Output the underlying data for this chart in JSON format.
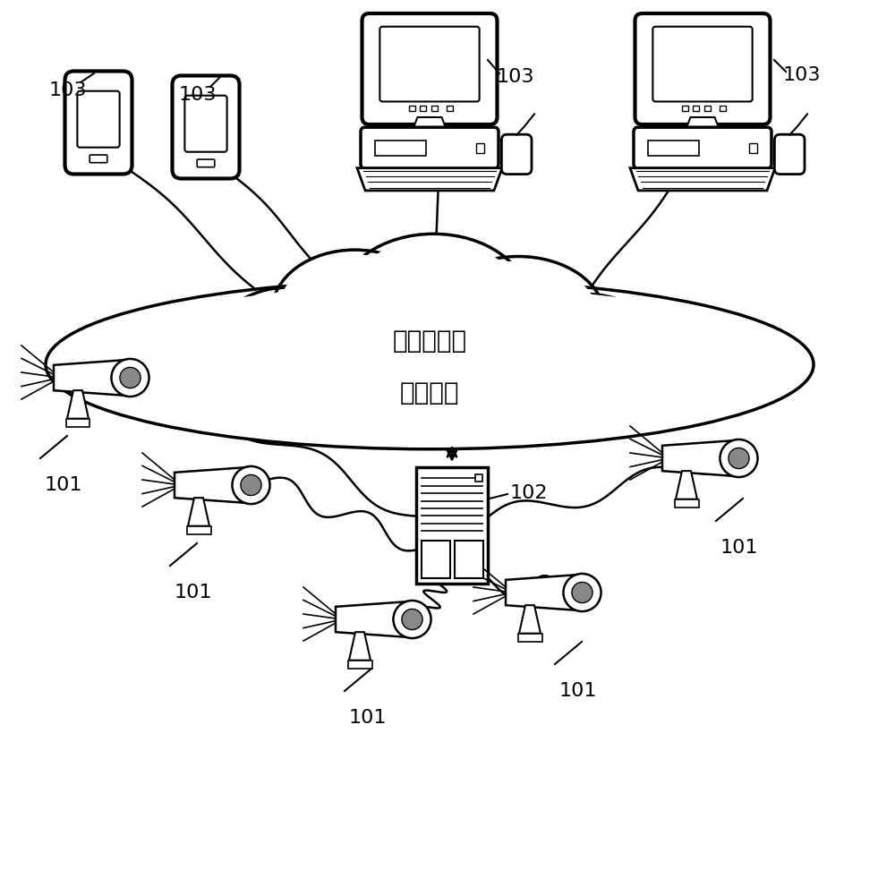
{
  "background_color": "#ffffff",
  "line_color": "#000000",
  "cloud_text_line1": "有线方式或",
  "cloud_text_line2": "无线方式",
  "server_label": "102",
  "camera_label": "101",
  "client_label": "103",
  "figsize": [
    10.0,
    9.72
  ],
  "dpi": 100
}
